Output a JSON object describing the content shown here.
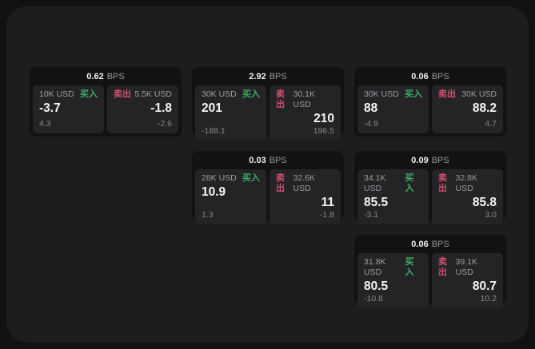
{
  "theme": {
    "outer_bg": "#111113",
    "panel_bg": "#1d1d1f",
    "card_bg": "#121214",
    "subcard_bg": "#242427",
    "text_primary": "#f5f5f5",
    "text_secondary": "#9c9ca0",
    "buy_color": "#3fae63",
    "sell_color": "#d0506d"
  },
  "labels": {
    "bps_unit": "BPS",
    "buy": "买入",
    "sell": "卖出"
  },
  "cards": [
    {
      "bps": "0.62",
      "buy": {
        "amount": "10K USD",
        "price": "-3.7",
        "delta": "4.3"
      },
      "sell": {
        "amount": "5.5K USD",
        "price": "-1.8",
        "delta": "-2.6"
      }
    },
    {
      "bps": "2.92",
      "buy": {
        "amount": "30K USD",
        "price": "201",
        "delta": "-188.1"
      },
      "sell": {
        "amount": "30.1K USD",
        "price": "210",
        "delta": "196.5"
      }
    },
    {
      "bps": "0.06",
      "buy": {
        "amount": "30K USD",
        "price": "88",
        "delta": "-4.9"
      },
      "sell": {
        "amount": "30K USD",
        "price": "88.2",
        "delta": "4.7"
      }
    },
    {
      "bps": "0.03",
      "buy": {
        "amount": "28K USD",
        "price": "10.9",
        "delta": "1.3"
      },
      "sell": {
        "amount": "32.6K USD",
        "price": "11",
        "delta": "-1.8"
      }
    },
    {
      "bps": "0.09",
      "buy": {
        "amount": "34.1K USD",
        "price": "85.5",
        "delta": "-3.1"
      },
      "sell": {
        "amount": "32.8K USD",
        "price": "85.8",
        "delta": "3.0"
      }
    },
    {
      "bps": "0.06",
      "buy": {
        "amount": "31.8K USD",
        "price": "80.5",
        "delta": "-10.8"
      },
      "sell": {
        "amount": "39.1K USD",
        "price": "80.7",
        "delta": "10.2"
      }
    }
  ]
}
